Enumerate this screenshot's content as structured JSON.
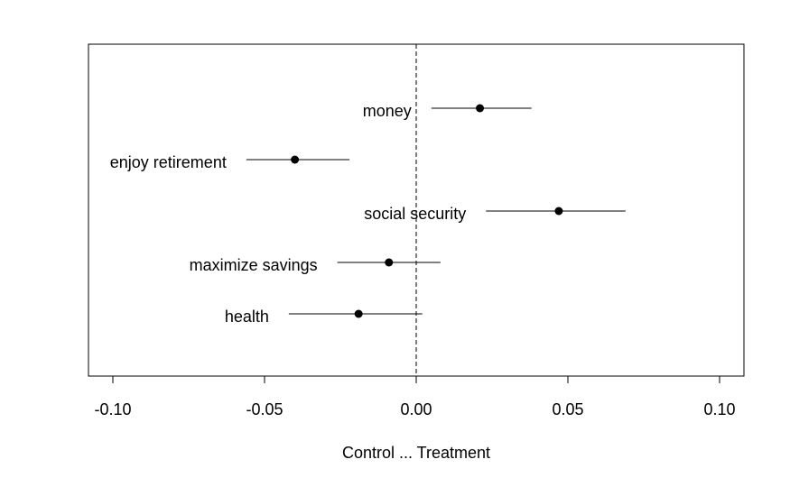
{
  "chart_data": {
    "type": "scatter",
    "xlabel": "Control ... Treatment",
    "xlim": [
      -0.108,
      0.108
    ],
    "xticks": [
      -0.1,
      -0.05,
      0.0,
      0.05,
      0.1
    ],
    "xtick_labels": [
      "-0.10",
      "-0.05",
      "0.00",
      "0.05",
      "0.10"
    ],
    "reference_line": {
      "x": 0,
      "style": "dashed"
    },
    "points": [
      {
        "label": "money",
        "estimate": 0.021,
        "ci_low": 0.005,
        "ci_high": 0.038
      },
      {
        "label": "enjoy retirement",
        "estimate": -0.04,
        "ci_low": -0.056,
        "ci_high": -0.022
      },
      {
        "label": "social security",
        "estimate": 0.047,
        "ci_low": 0.023,
        "ci_high": 0.069
      },
      {
        "label": "maximize savings",
        "estimate": -0.009,
        "ci_low": -0.026,
        "ci_high": 0.008
      },
      {
        "label": "health",
        "estimate": -0.019,
        "ci_low": -0.042,
        "ci_high": 0.002
      }
    ],
    "grid": false,
    "legend": "none"
  }
}
